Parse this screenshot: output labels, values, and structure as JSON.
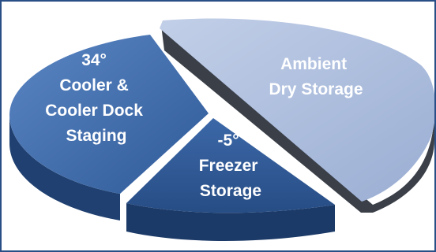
{
  "chart_data": {
    "type": "pie",
    "style": "3d-exploded",
    "legend": "none",
    "slices": [
      {
        "lines": [
          "Ambient",
          "Dry Storage"
        ],
        "value": 45,
        "color": "#a9b9d9"
      },
      {
        "lines": [
          "34°",
          "Cooler &",
          "Cooler Dock",
          "Staging"
        ],
        "value": 35,
        "color": "#3f6fb0"
      },
      {
        "lines": [
          "-5°",
          "Freezer",
          "Storage"
        ],
        "value": 20,
        "color": "#2f5a98"
      }
    ]
  }
}
